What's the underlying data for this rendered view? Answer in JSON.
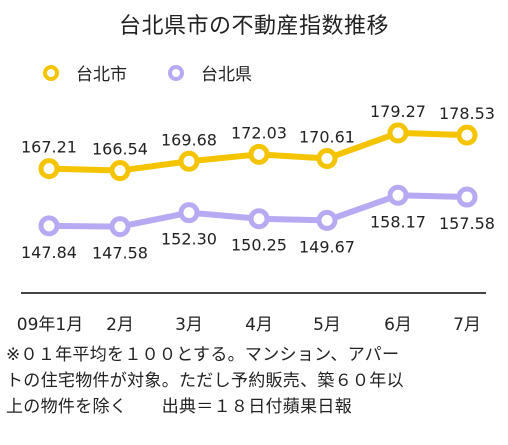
{
  "colors": {
    "shi": "#f5c400",
    "ken": "#b8aaf2",
    "axis": "#444444",
    "text": "#222222"
  },
  "legend": {
    "icon": "ring-icon"
  },
  "chart_data": {
    "type": "line",
    "title": "台北県市の不動産指数推移",
    "categories": [
      "09年1月",
      "2月",
      "3月",
      "4月",
      "5月",
      "6月",
      "7月"
    ],
    "series": [
      {
        "name": "台北市",
        "values": [
          167.21,
          166.54,
          169.68,
          172.03,
          170.61,
          179.27,
          178.53
        ]
      },
      {
        "name": "台北県",
        "values": [
          147.84,
          147.58,
          152.3,
          150.25,
          149.67,
          158.17,
          157.58
        ]
      }
    ],
    "value_labels": {
      "shi": [
        "167.21",
        "166.54",
        "169.68",
        "172.03",
        "170.61",
        "179.27",
        "178.53"
      ],
      "ken": [
        "147.84",
        "147.58",
        "152.30",
        "150.25",
        "149.67",
        "158.17",
        "157.58"
      ]
    },
    "ylim": [
      140,
      185
    ],
    "grid": false,
    "legend_position": "top-left"
  },
  "note": {
    "lines": [
      "※０１年平均を１００とする。マンション、アパー",
      "トの住宅物件が対象。ただし予約販売、築６０年以",
      "上の物件を除く　　出典＝１８日付蘋果日報"
    ]
  }
}
